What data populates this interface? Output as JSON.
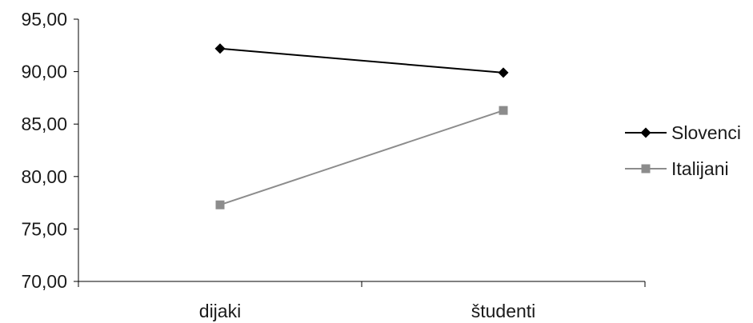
{
  "chart_data": {
    "type": "line",
    "categories": [
      "dijaki",
      "študenti"
    ],
    "ylim": [
      70,
      95
    ],
    "yticks": [
      "70,00",
      "75,00",
      "80,00",
      "85,00",
      "90,00",
      "95,00"
    ],
    "ytick_values": [
      70,
      75,
      80,
      85,
      90,
      95
    ],
    "grid": false,
    "legend_position": "right",
    "series": [
      {
        "name": "Slovenci",
        "values": [
          92.2,
          89.9
        ],
        "color": "#000000",
        "marker": "diamond"
      },
      {
        "name": "Italijani",
        "values": [
          77.3,
          86.3
        ],
        "color": "#8c8c8c",
        "marker": "square"
      }
    ]
  }
}
